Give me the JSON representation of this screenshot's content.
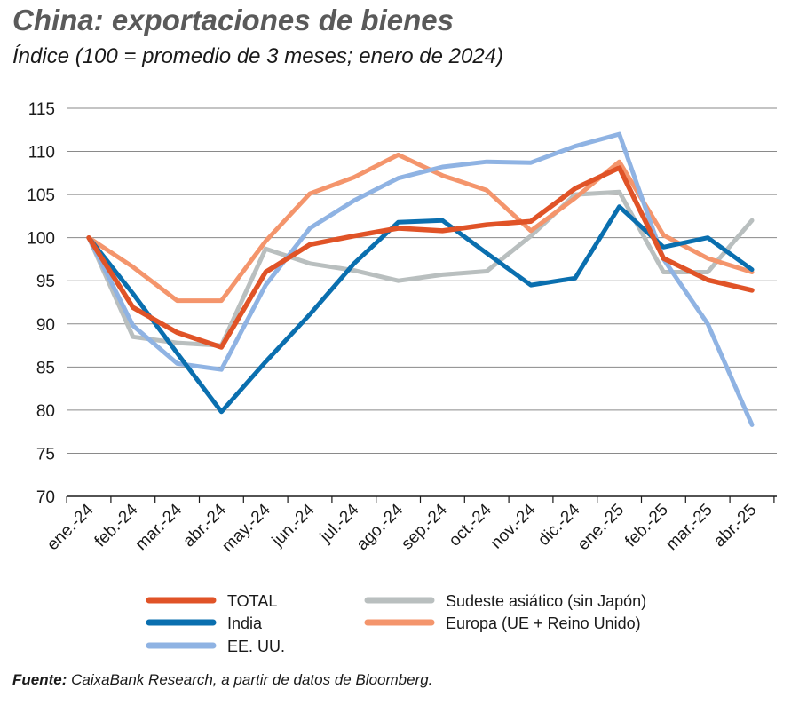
{
  "title": "China: exportaciones de bienes",
  "subtitle": "Índice (100 = promedio de 3 meses; enero de 2024)",
  "source_label": "Fuente:",
  "source_text": " CaixaBank Research, a partir de datos de Bloomberg.",
  "colors": {
    "total": "#e05327",
    "india": "#0a6faf",
    "sudeste": "#b9bfbf",
    "europa": "#f4956c",
    "eeuu": "#8fb3e3",
    "grid": "#8a8a8a",
    "axis": "#1a1a1a"
  },
  "chart_data": {
    "type": "line",
    "title": "China: exportaciones de bienes",
    "subtitle": "Índice (100 = promedio de 3 meses; enero de 2024)",
    "xlabel": "",
    "ylabel": "",
    "ylim": [
      70,
      115
    ],
    "yticks": [
      70,
      75,
      80,
      85,
      90,
      95,
      100,
      105,
      110,
      115
    ],
    "grid": true,
    "legend_position": "bottom",
    "categories": [
      "ene.-24",
      "feb.-24",
      "mar.-24",
      "abr.-24",
      "may.-24",
      "jun.-24",
      "jul.-24",
      "ago.-24",
      "sep.-24",
      "oct.-24",
      "nov.-24",
      "dic.-24",
      "ene.-25",
      "feb.-25",
      "mar.-25",
      "abr.-25"
    ],
    "series": [
      {
        "key": "sudeste",
        "name": "Sudeste asiático (sin Japón)",
        "values": [
          100,
          88.5,
          87.8,
          87.5,
          98.7,
          97.0,
          96.2,
          95.0,
          95.7,
          96.1,
          100.2,
          105.0,
          105.3,
          96.0,
          96.0,
          102.0
        ]
      },
      {
        "key": "europa",
        "name": "Europa (UE + Reino Unido)",
        "values": [
          100,
          96.6,
          92.7,
          92.7,
          99.6,
          105.1,
          107.0,
          109.6,
          107.2,
          105.5,
          100.8,
          104.6,
          108.8,
          100.3,
          97.6,
          96.0
        ]
      },
      {
        "key": "eeuu",
        "name": "EE. UU.",
        "values": [
          100,
          89.8,
          85.4,
          84.7,
          94.5,
          101.1,
          104.3,
          106.9,
          108.2,
          108.8,
          108.7,
          110.6,
          112.0,
          97.5,
          90.0,
          78.3
        ]
      },
      {
        "key": "india",
        "name": "India",
        "values": [
          100,
          93.5,
          86.6,
          79.8,
          85.6,
          91.1,
          97.0,
          101.8,
          102.0,
          98.2,
          94.5,
          95.3,
          103.6,
          98.9,
          100.0,
          96.3
        ]
      },
      {
        "key": "total",
        "name": "TOTAL",
        "values": [
          100,
          91.9,
          89.0,
          87.3,
          96.0,
          99.2,
          100.2,
          101.1,
          100.8,
          101.5,
          101.9,
          105.7,
          108.1,
          97.6,
          95.1,
          93.9
        ]
      }
    ],
    "legend": [
      {
        "key": "total",
        "label": "TOTAL"
      },
      {
        "key": "sudeste",
        "label": "Sudeste asiático (sin Japón)"
      },
      {
        "key": "india",
        "label": "India"
      },
      {
        "key": "europa",
        "label": "Europa (UE + Reino Unido)"
      },
      {
        "key": "eeuu",
        "label": "EE. UU."
      }
    ]
  }
}
